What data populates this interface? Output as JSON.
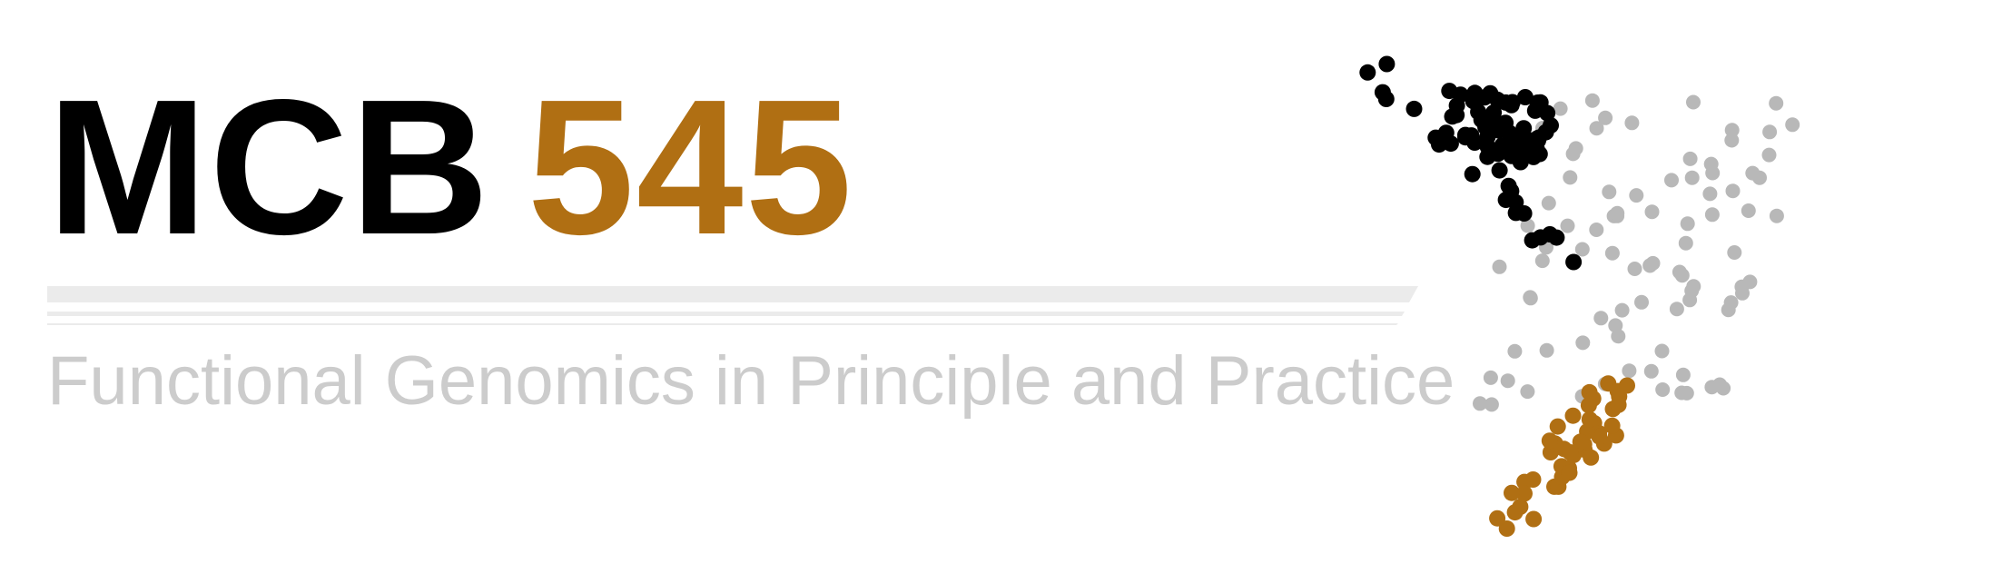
{
  "banner": {
    "course_code": "MCB",
    "course_number": "545",
    "subtitle": "Functional Genomics in Principle and Practice"
  },
  "colors": {
    "code": "#000000",
    "number": "#B06F13",
    "subtitle": "#CCCCCC",
    "rule": "#EBEBEB",
    "cluster_black": "#000000",
    "cluster_gray": "#B8B8B8",
    "cluster_gold": "#B06F13"
  },
  "scatter": {
    "type": "scatter",
    "decorative": true,
    "series": [
      {
        "color": "#B8B8B8",
        "count": 90
      },
      {
        "color": "#B06F13",
        "count": 45
      },
      {
        "color": "#000000",
        "count": 80
      }
    ]
  }
}
